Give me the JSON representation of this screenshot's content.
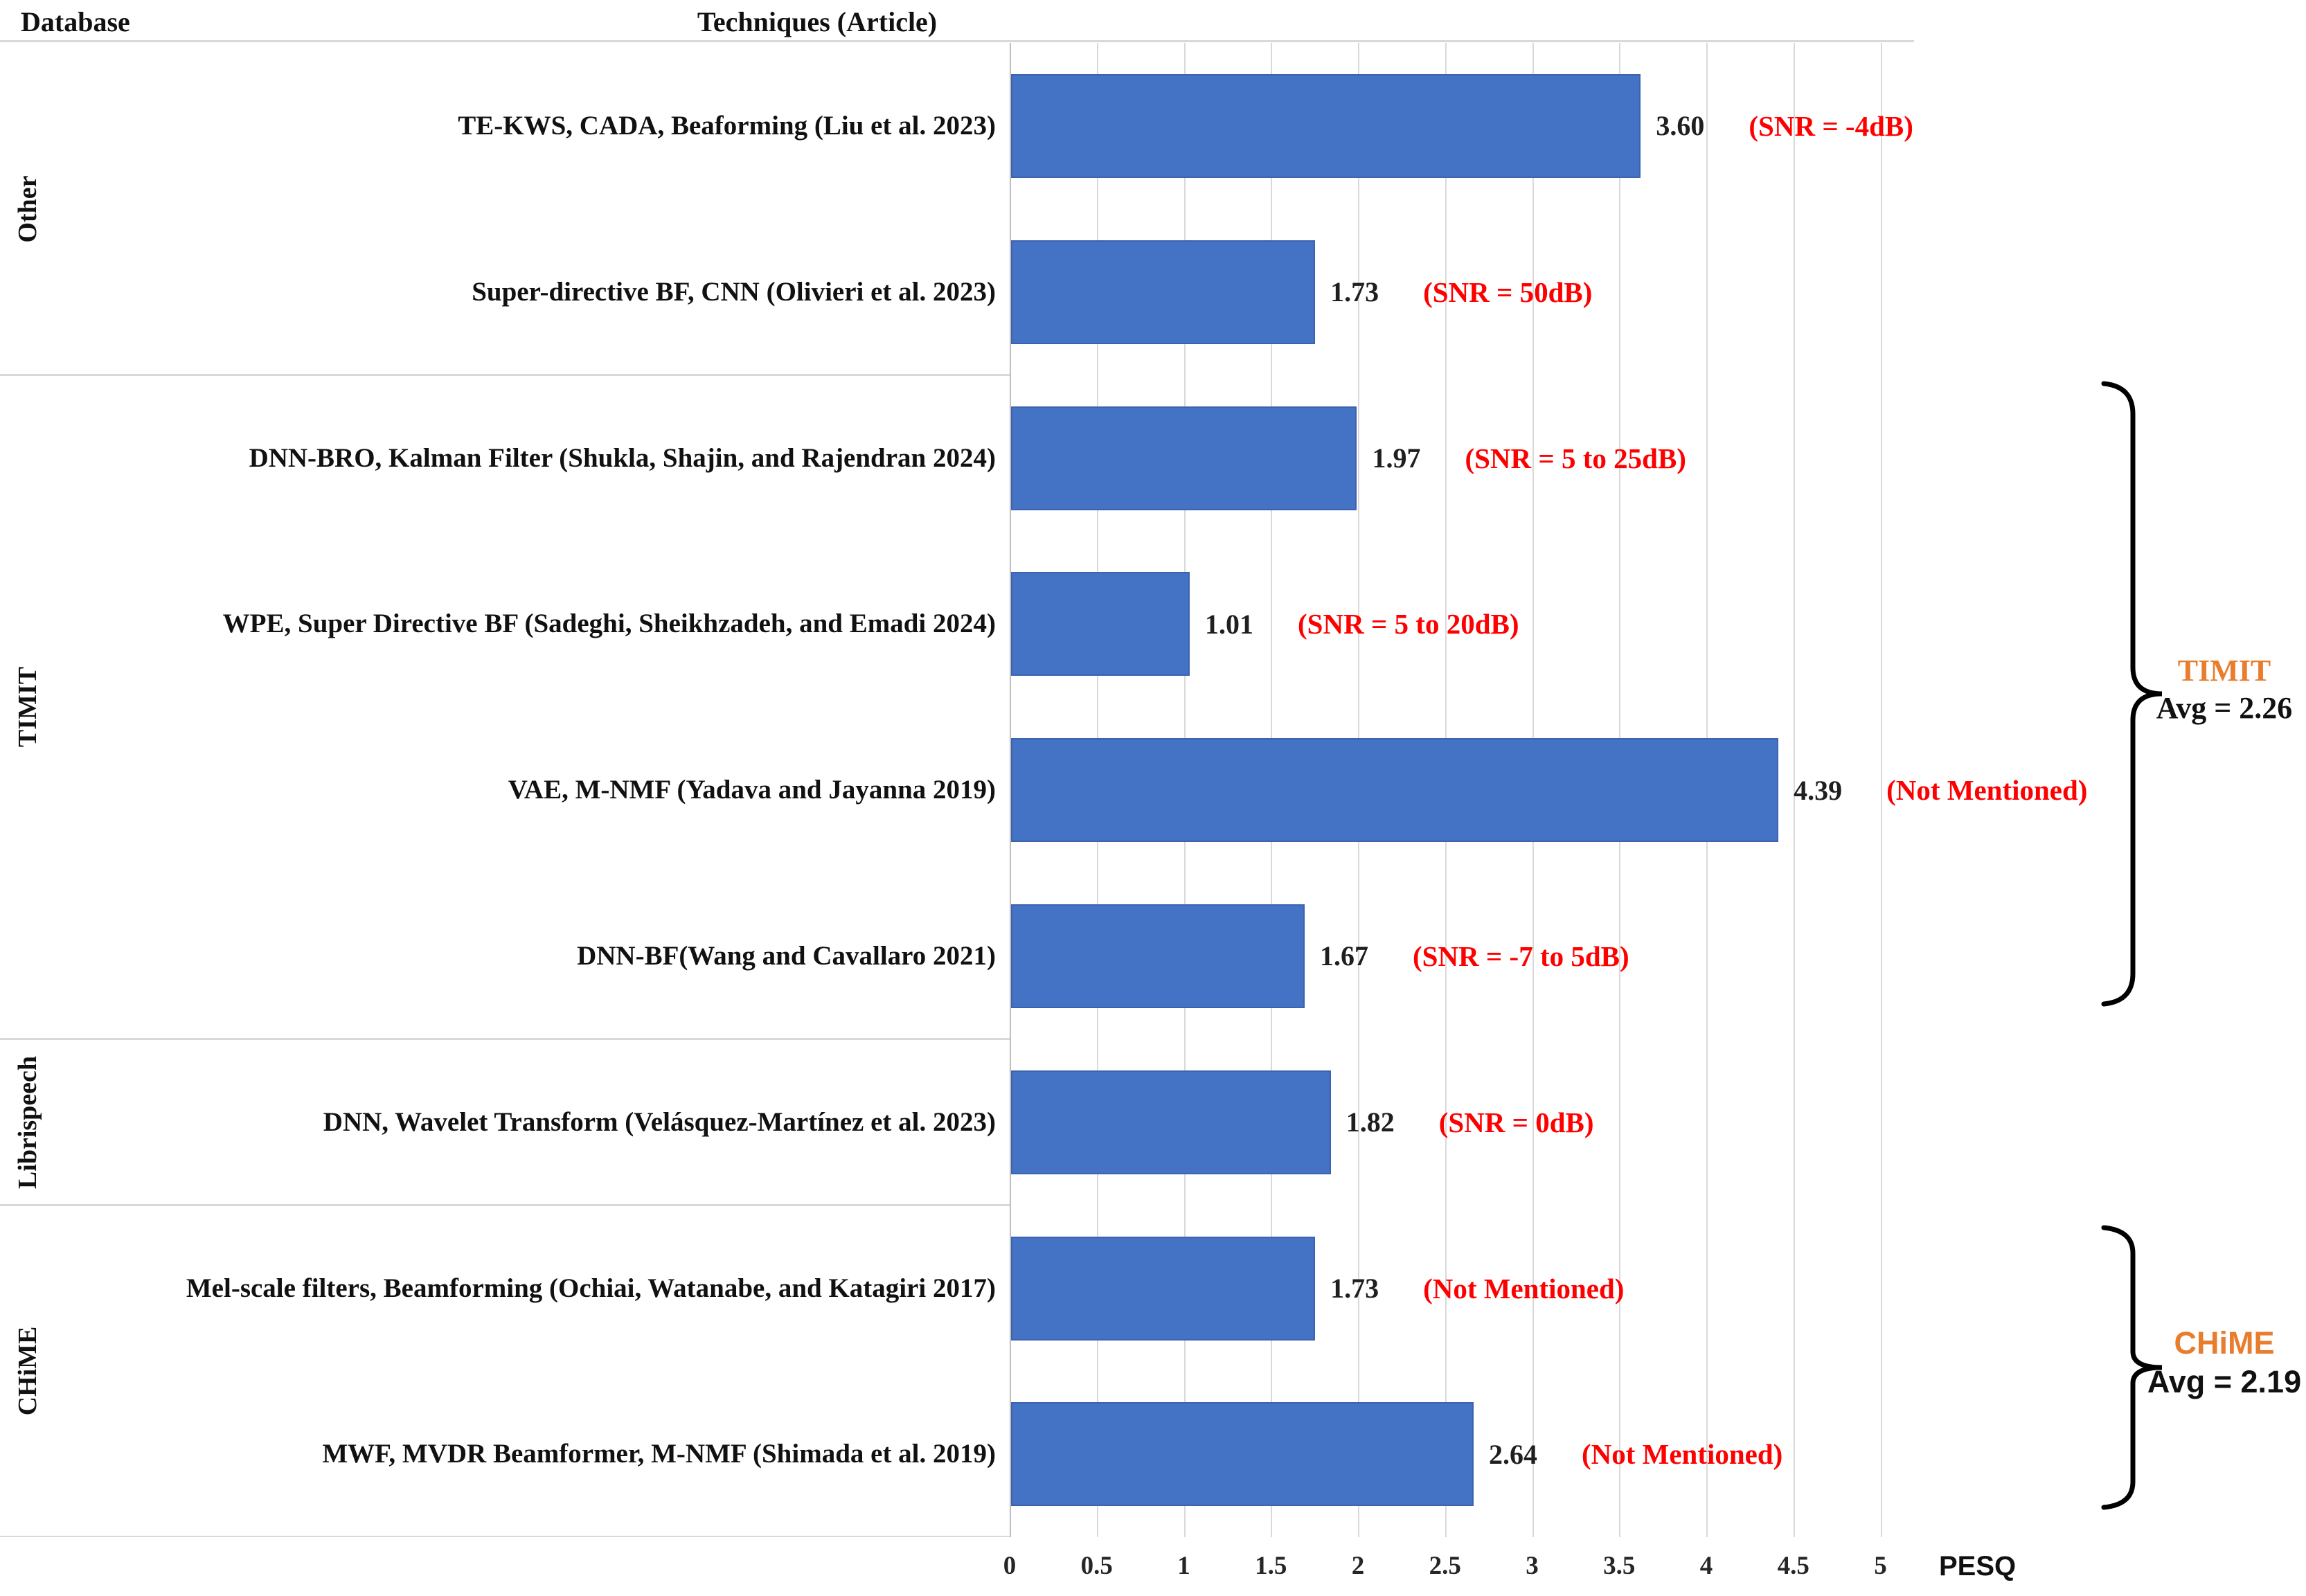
{
  "header": {
    "database_label": "Database",
    "techniques_label": "Techniques (Article)"
  },
  "axis": {
    "ticks": [
      "0",
      "0.5",
      "1",
      "1.5",
      "2",
      "2.5",
      "3",
      "3.5",
      "4",
      "4.5",
      "5"
    ],
    "label": "PESQ"
  },
  "colors": {
    "bar": "#4472C4",
    "annotation_red": "#FF0000",
    "accent_orange": "#E87D2E",
    "gridline": "#D9D9D9"
  },
  "database_groups": [
    {
      "name": "Other",
      "row_count": 2
    },
    {
      "name": "TIMIT",
      "row_count": 4,
      "avg_label": "Avg = 2.26"
    },
    {
      "name": "Librispeech",
      "row_count": 1
    },
    {
      "name": "CHiME",
      "row_count": 2,
      "avg_label": "Avg = 2.19"
    }
  ],
  "side_annotations": {
    "timit": {
      "title": "TIMIT",
      "avg": "Avg = 2.26"
    },
    "chime": {
      "title": "CHiME",
      "avg": "Avg = 2.19"
    }
  },
  "chart_data": {
    "type": "bar",
    "orientation": "horizontal",
    "title": "",
    "xlabel": "PESQ",
    "ylabel": "Techniques (Article)",
    "xlim": [
      0,
      5
    ],
    "grid": true,
    "bar_color": "#4472C4",
    "categories": [
      "TE-KWS, CADA, Beaforming (Liu et al. 2023)",
      "Super-directive BF, CNN (Olivieri et al. 2023)",
      "DNN-BRO, Kalman Filter (Shukla, Shajin, and Rajendran 2024)",
      "WPE, Super Directive BF (Sadeghi, Sheikhzadeh, and Emadi 2024)",
      "VAE, M-NMF (Yadava and Jayanna 2019)",
      "DNN-BF(Wang and Cavallaro 2021)",
      "DNN, Wavelet Transform (Velásquez-Martínez et al. 2023)",
      "Mel-scale filters, Beamforming (Ochiai, Watanabe, and Katagiri 2017)",
      "MWF, MVDR Beamformer, M-NMF (Shimada et al. 2019)"
    ],
    "values": [
      3.6,
      1.73,
      1.97,
      1.01,
      4.39,
      1.67,
      1.82,
      1.73,
      2.64
    ],
    "value_labels": [
      "3.60",
      "1.73",
      "1.97",
      "1.01",
      "4.39",
      "1.67",
      "1.82",
      "1.73",
      "2.64"
    ],
    "annotations": [
      "(SNR = -4dB)",
      "(SNR = 50dB)",
      "(SNR = 5 to 25dB)",
      "(SNR = 5 to 20dB)",
      "(Not Mentioned)",
      "(SNR = -7 to 5dB)",
      "(SNR = 0dB)",
      "(Not Mentioned)",
      "(Not Mentioned)"
    ],
    "row_groups": [
      "Other",
      "Other",
      "TIMIT",
      "TIMIT",
      "TIMIT",
      "TIMIT",
      "Librispeech",
      "CHiME",
      "CHiME"
    ]
  }
}
